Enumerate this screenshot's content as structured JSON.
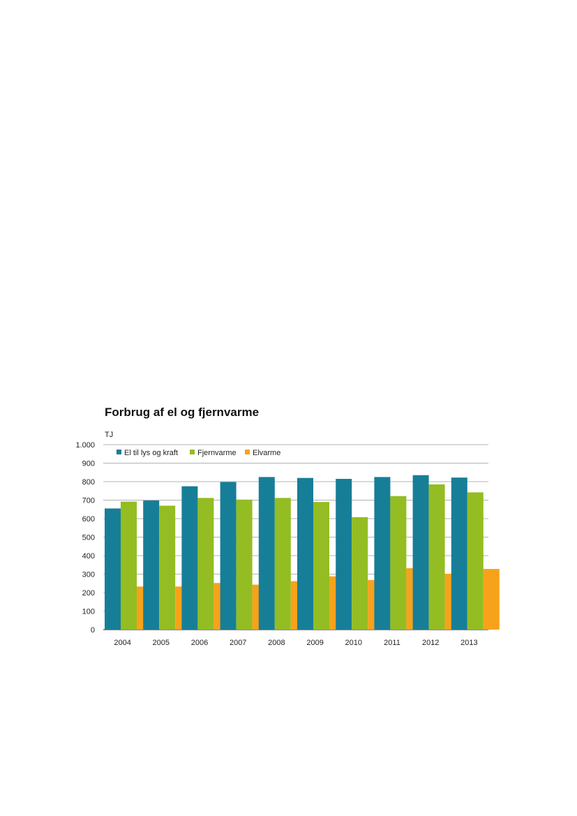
{
  "chart_data": {
    "type": "bar",
    "title": "Forbrug af el og fjernvarme",
    "ylabel": "TJ",
    "xlabel": "",
    "ylim": [
      0,
      1000
    ],
    "yticks": [
      0,
      100,
      200,
      300,
      400,
      500,
      600,
      700,
      800,
      900,
      1000
    ],
    "ytick_labels": [
      "0",
      "100",
      "200",
      "300",
      "400",
      "500",
      "600",
      "700",
      "800",
      "900",
      "1.000"
    ],
    "grid": true,
    "legend_position": "top-left",
    "categories": [
      "2004",
      "2005",
      "2006",
      "2007",
      "2008",
      "2009",
      "2010",
      "2011",
      "2012",
      "2013"
    ],
    "series": [
      {
        "name": "El til lys og kraft",
        "color": "#177e98",
        "values": [
          655,
          698,
          775,
          798,
          825,
          820,
          815,
          825,
          835,
          822
        ]
      },
      {
        "name": "Fjernvarme",
        "color": "#93bd22",
        "values": [
          692,
          670,
          712,
          703,
          712,
          690,
          608,
          722,
          785,
          742
        ]
      },
      {
        "name": "Elvarme",
        "color": "#f7a21b",
        "values": [
          233,
          233,
          252,
          243,
          262,
          288,
          268,
          332,
          302,
          328
        ]
      }
    ]
  }
}
